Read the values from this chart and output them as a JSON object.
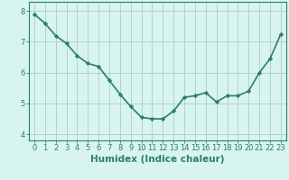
{
  "x": [
    0,
    1,
    2,
    3,
    4,
    5,
    6,
    7,
    8,
    9,
    10,
    11,
    12,
    13,
    14,
    15,
    16,
    17,
    18,
    19,
    20,
    21,
    22,
    23
  ],
  "y": [
    7.9,
    7.6,
    7.2,
    6.95,
    6.55,
    6.3,
    6.2,
    5.75,
    5.3,
    4.9,
    4.55,
    4.5,
    4.5,
    4.75,
    5.2,
    5.25,
    5.35,
    5.05,
    5.25,
    5.25,
    5.4,
    6.0,
    6.45,
    7.25
  ],
  "line_color": "#2d7d6e",
  "marker": "D",
  "marker_size": 2.2,
  "background_color": "#d8f4ee",
  "grid_color": "#aeccc6",
  "xlabel": "Humidex (Indice chaleur)",
  "xlabel_fontsize": 7.5,
  "ylim": [
    3.8,
    8.3
  ],
  "xlim": [
    -0.5,
    23.5
  ],
  "yticks": [
    4,
    5,
    6,
    7,
    8
  ],
  "xticks": [
    0,
    1,
    2,
    3,
    4,
    5,
    6,
    7,
    8,
    9,
    10,
    11,
    12,
    13,
    14,
    15,
    16,
    17,
    18,
    19,
    20,
    21,
    22,
    23
  ],
  "tick_fontsize": 6,
  "axis_color": "#2d7d6e",
  "linewidth": 1.2
}
